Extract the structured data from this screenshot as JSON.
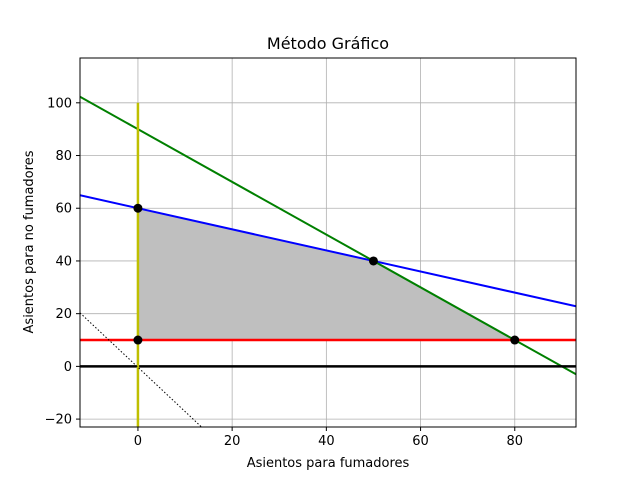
{
  "chart_data": {
    "type": "line",
    "title": "Método Gráfico",
    "xlabel": "Asientos para fumadores",
    "ylabel": "Asientos para no fumadores",
    "xlim": [
      -12.3,
      93
    ],
    "ylim": [
      -23,
      117
    ],
    "xticks": [
      0,
      20,
      40,
      60,
      80
    ],
    "yticks": [
      -20,
      0,
      20,
      40,
      60,
      80,
      100
    ],
    "grid": true,
    "feasible_region": {
      "polygon": [
        [
          0,
          10
        ],
        [
          0,
          60
        ],
        [
          50,
          40
        ],
        [
          80,
          10
        ]
      ],
      "color": "#bfbfbf"
    },
    "series": [
      {
        "color": "#0000ff",
        "style": "solid",
        "width": 2,
        "points": [
          [
            -12.3,
            64.92
          ],
          [
            93,
            22.8
          ]
        ]
      },
      {
        "color": "#008000",
        "style": "solid",
        "width": 2,
        "points": [
          [
            -12.3,
            102.3
          ],
          [
            93,
            -3
          ]
        ]
      },
      {
        "color": "#ff0000",
        "style": "solid",
        "width": 2.5,
        "points": [
          [
            -12.3,
            10
          ],
          [
            93,
            10
          ]
        ]
      },
      {
        "color": "#000000",
        "style": "solid",
        "width": 2.5,
        "points": [
          [
            -12.3,
            0
          ],
          [
            93,
            0
          ]
        ]
      },
      {
        "color": "#bfbf00",
        "style": "solid",
        "width": 2.5,
        "points": [
          [
            0,
            -23
          ],
          [
            0,
            100
          ]
        ]
      },
      {
        "color": "#000000",
        "style": "dotted",
        "width": 1,
        "points": [
          [
            -12.3,
            20.3
          ],
          [
            13.5,
            -23
          ]
        ]
      }
    ],
    "points": [
      [
        0,
        60
      ],
      [
        50,
        40
      ],
      [
        80,
        10
      ],
      [
        0,
        10
      ]
    ]
  }
}
